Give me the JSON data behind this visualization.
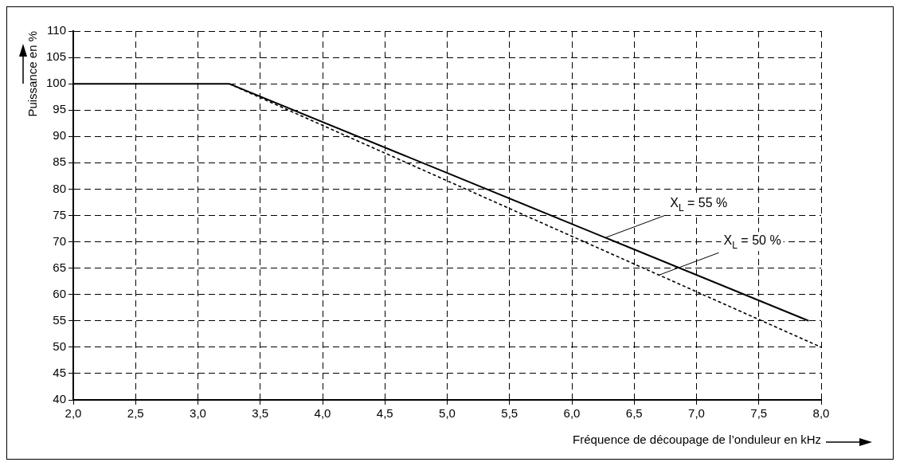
{
  "chart_data": {
    "type": "line",
    "xlabel": "Fréquence de découpage de l’onduleur en kHz",
    "ylabel": "Puissance en %",
    "series": [
      {
        "x": [
          2.0,
          3.25,
          7.9
        ],
        "values": [
          100,
          100,
          55
        ],
        "color": "#000000",
        "line_style": "solid"
      },
      {
        "x": [
          3.25,
          8.0
        ],
        "values": [
          100,
          50
        ],
        "color": "#000000",
        "line_style": "dashed"
      }
    ],
    "xlim": [
      2.0,
      8.0
    ],
    "xticks": [
      {
        "value": 2,
        "label": "2,0"
      },
      {
        "value": 2.5,
        "label": "2,5"
      },
      {
        "value": 3,
        "label": "3,0"
      },
      {
        "value": 3.5,
        "label": "3,5"
      },
      {
        "value": 4,
        "label": "4,0"
      },
      {
        "value": 4.5,
        "label": "4,5"
      },
      {
        "value": 5,
        "label": "5,0"
      },
      {
        "value": 5.5,
        "label": "5,5"
      },
      {
        "value": 6,
        "label": "6,0"
      },
      {
        "value": 6.5,
        "label": "6,5"
      },
      {
        "value": 7,
        "label": "7,0"
      },
      {
        "value": 7.5,
        "label": "7,5"
      },
      {
        "value": 8,
        "label": "8,0"
      }
    ],
    "ylim": [
      40,
      110
    ],
    "yticks": [
      40,
      45,
      50,
      55,
      60,
      65,
      70,
      75,
      80,
      85,
      90,
      95,
      100,
      105,
      110
    ],
    "grid": true,
    "legend": false,
    "marker": "none",
    "annotations": [
      {
        "text": "X$_{L}$ = 55 %",
        "x": 6.27,
        "y": 70.8
      },
      {
        "text": "X$_{L}$ = 50 %",
        "x": 6.7,
        "y": 63.7
      }
    ]
  }
}
